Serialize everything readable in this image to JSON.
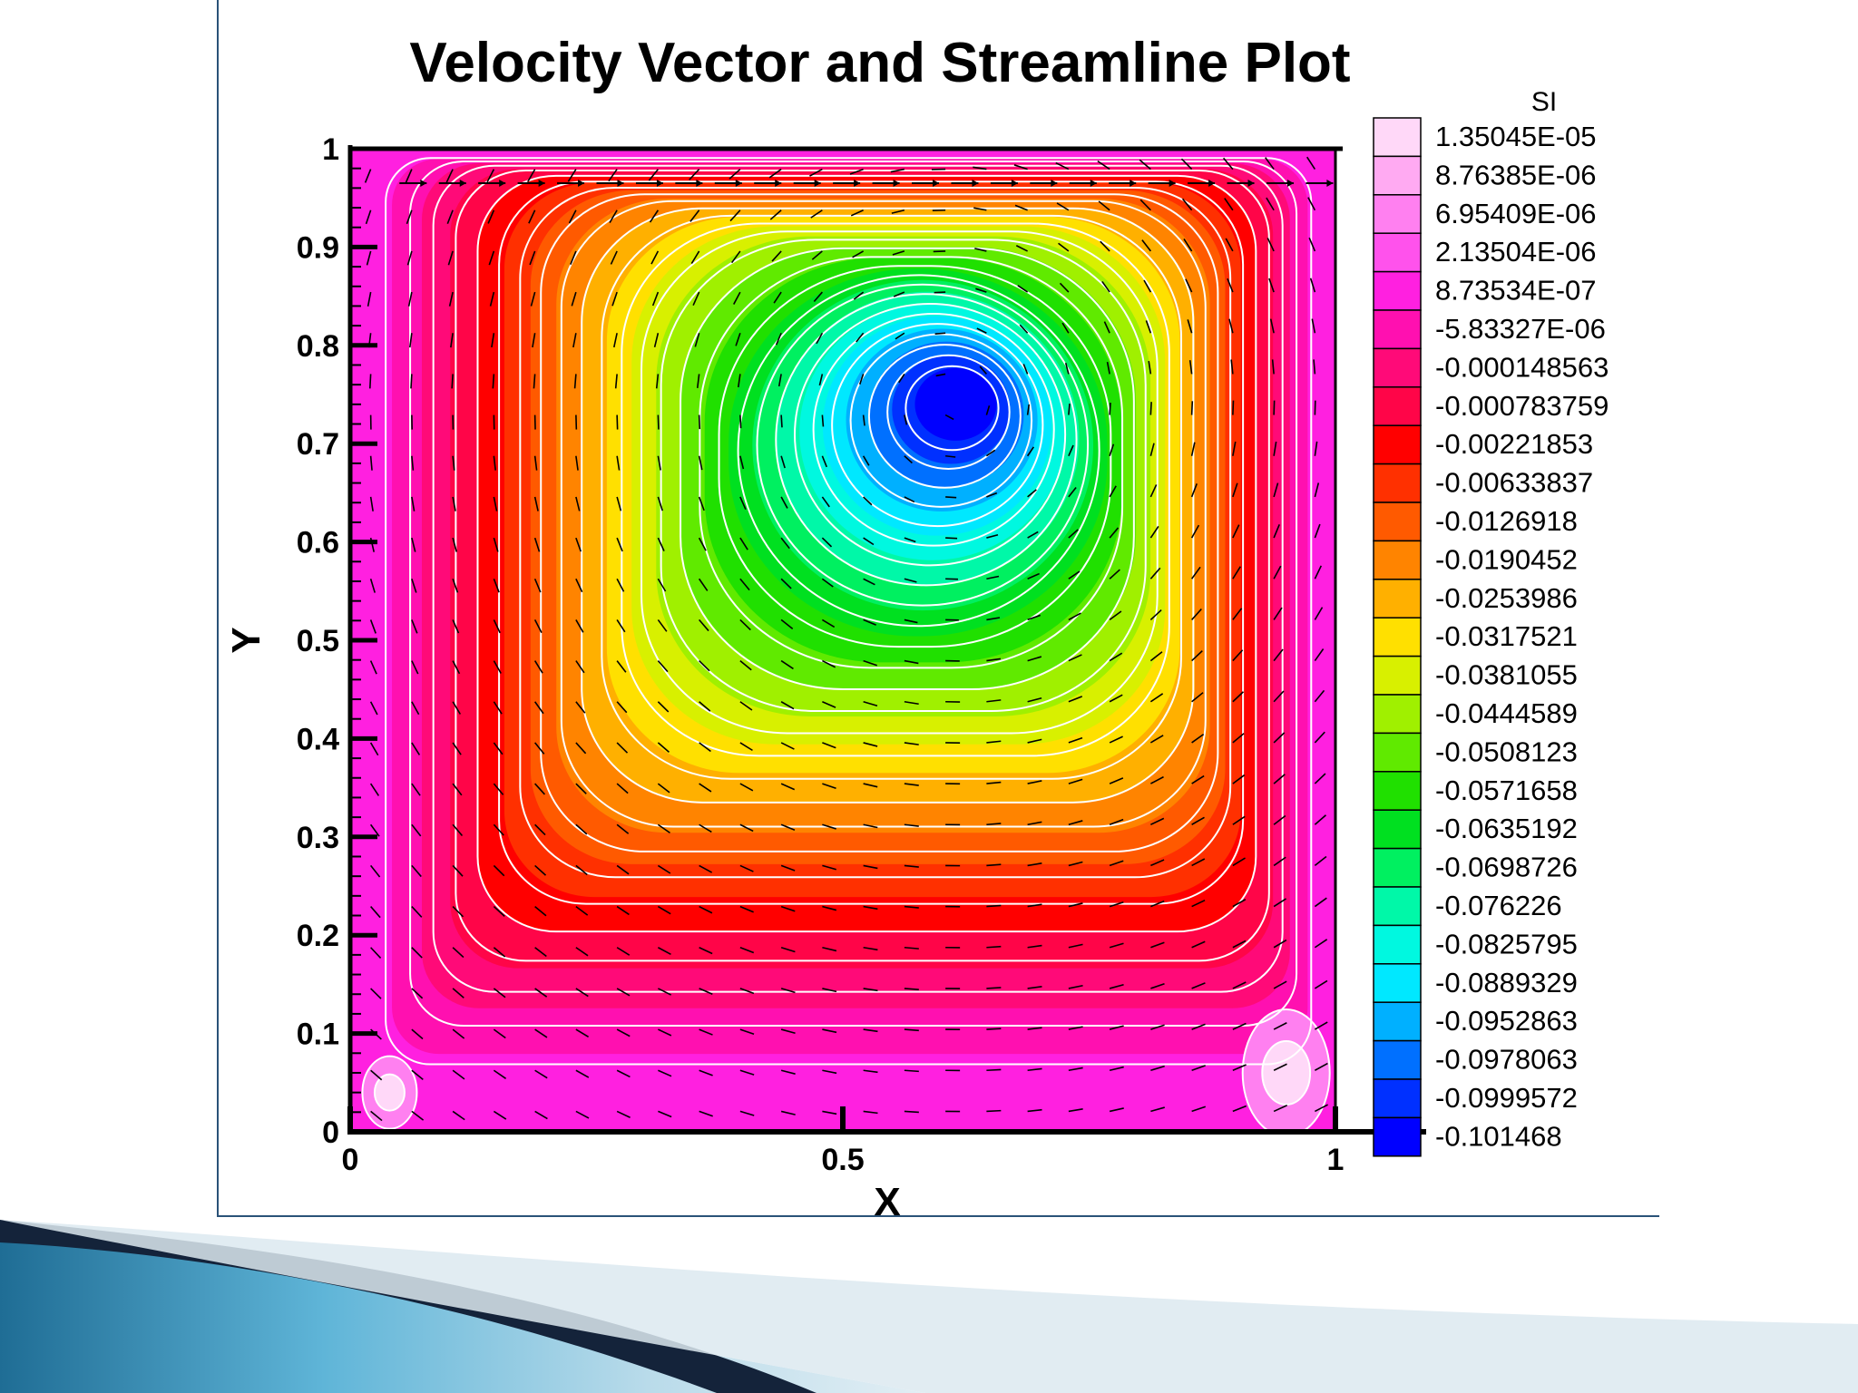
{
  "chart_data": {
    "type": "heatmap",
    "title": "Velocity Vector and Streamline Plot",
    "xlabel": "X",
    "ylabel": "Y",
    "xlim": [
      0,
      1
    ],
    "ylim": [
      0,
      1
    ],
    "x_ticks": [
      "0",
      "0.5",
      "1"
    ],
    "y_ticks": [
      "0",
      "0.1",
      "0.2",
      "0.3",
      "0.4",
      "0.5",
      "0.6",
      "0.7",
      "0.8",
      "0.9",
      "1"
    ],
    "vortex_center": {
      "x": 0.61,
      "y": 0.74
    },
    "grid": false,
    "legend": {
      "title": "SI",
      "placement": "right",
      "levels": [
        {
          "label": "1.35045E-05",
          "color": "#ffd8f8"
        },
        {
          "label": "8.76385E-06",
          "color": "#ffaaf2"
        },
        {
          "label": "6.95409E-06",
          "color": "#ff80f0"
        },
        {
          "label": "2.13504E-06",
          "color": "#ff52ec"
        },
        {
          "label": "8.73534E-07",
          "color": "#ff20e0"
        },
        {
          "label": "-5.83327E-06",
          "color": "#ff10b0"
        },
        {
          "label": "-0.000148563",
          "color": "#ff0a78"
        },
        {
          "label": "-0.000783759",
          "color": "#ff0548"
        },
        {
          "label": "-0.00221853",
          "color": "#ff0000"
        },
        {
          "label": "-0.00633837",
          "color": "#ff3000"
        },
        {
          "label": "-0.0126918",
          "color": "#ff5a00"
        },
        {
          "label": "-0.0190452",
          "color": "#ff8400"
        },
        {
          "label": "-0.0253986",
          "color": "#ffb000"
        },
        {
          "label": "-0.0317521",
          "color": "#ffe000"
        },
        {
          "label": "-0.0381055",
          "color": "#d8f000"
        },
        {
          "label": "-0.0444589",
          "color": "#a0f000"
        },
        {
          "label": "-0.0508123",
          "color": "#60ea00"
        },
        {
          "label": "-0.0571658",
          "color": "#20e000"
        },
        {
          "label": "-0.0635192",
          "color": "#00e020"
        },
        {
          "label": "-0.0698726",
          "color": "#00f060"
        },
        {
          "label": "-0.076226",
          "color": "#00f8a8"
        },
        {
          "label": "-0.0825795",
          "color": "#00f8e0"
        },
        {
          "label": "-0.0889329",
          "color": "#00e8ff"
        },
        {
          "label": "-0.0952863",
          "color": "#00b0ff"
        },
        {
          "label": "-0.0978063",
          "color": "#0070ff"
        },
        {
          "label": "-0.0999572",
          "color": "#0030ff"
        },
        {
          "label": "-0.101468",
          "color": "#0000ff"
        }
      ]
    }
  },
  "colors": {
    "frame": "#2a5278",
    "streamline": "#ffffff",
    "vector": "#000000"
  }
}
